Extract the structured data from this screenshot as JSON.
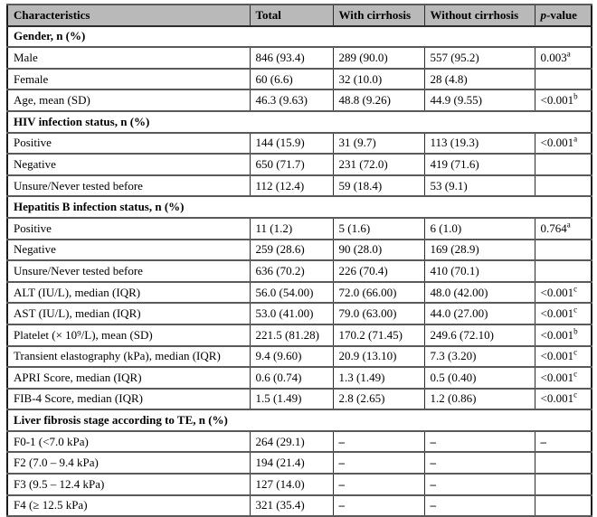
{
  "table": {
    "header": {
      "characteristics": "Characteristics",
      "total": "Total",
      "with_cirrhosis": "With cirrhosis",
      "without_cirrhosis": "Without cirrhosis",
      "p_value_italic": "p",
      "p_value_rest": "-value"
    },
    "rows": [
      {
        "type": "section",
        "label": "Gender, n (%)"
      },
      {
        "type": "data",
        "label": "Male",
        "total": "846 (93.4)",
        "with_cirrhosis": "289 (90.0)",
        "without_cirrhosis": "557 (95.2)",
        "p": "0.003",
        "p_sup": "a"
      },
      {
        "type": "data",
        "label": "Female",
        "total": "60 (6.6)",
        "with_cirrhosis": "32 (10.0)",
        "without_cirrhosis": "28 (4.8)",
        "p": "",
        "p_sup": ""
      },
      {
        "type": "data",
        "label": "Age, mean (SD)",
        "total": "46.3 (9.63)",
        "with_cirrhosis": "48.8 (9.26)",
        "without_cirrhosis": "44.9 (9.55)",
        "p": "<0.001",
        "p_sup": "b"
      },
      {
        "type": "section",
        "label": "HIV infection status, n (%)"
      },
      {
        "type": "data",
        "label": "Positive",
        "total": "144 (15.9)",
        "with_cirrhosis": "31 (9.7)",
        "without_cirrhosis": "113 (19.3)",
        "p": "<0.001",
        "p_sup": "a"
      },
      {
        "type": "data",
        "label": "Negative",
        "total": "650 (71.7)",
        "with_cirrhosis": "231 (72.0)",
        "without_cirrhosis": "419 (71.6)",
        "p": "",
        "p_sup": ""
      },
      {
        "type": "data",
        "label": "Unsure/Never tested before",
        "total": "112 (12.4)",
        "with_cirrhosis": "59 (18.4)",
        "without_cirrhosis": "53 (9.1)",
        "p": "",
        "p_sup": ""
      },
      {
        "type": "section",
        "label": "Hepatitis B infection status, n (%)"
      },
      {
        "type": "data",
        "label": "Positive",
        "total": "11 (1.2)",
        "with_cirrhosis": "5 (1.6)",
        "without_cirrhosis": "6 (1.0)",
        "p": "0.764",
        "p_sup": "a"
      },
      {
        "type": "data",
        "label": "Negative",
        "total": "259 (28.6)",
        "with_cirrhosis": "90 (28.0)",
        "without_cirrhosis": "169 (28.9)",
        "p": "",
        "p_sup": ""
      },
      {
        "type": "data",
        "label": "Unsure/Never tested before",
        "total": "636 (70.2)",
        "with_cirrhosis": "226 (70.4)",
        "without_cirrhosis": "410 (70.1)",
        "p": "",
        "p_sup": ""
      },
      {
        "type": "data",
        "label": "ALT (IU/L), median (IQR)",
        "total": "56.0 (54.00)",
        "with_cirrhosis": "72.0 (66.00)",
        "without_cirrhosis": "48.0 (42.00)",
        "p": "<0.001",
        "p_sup": "c"
      },
      {
        "type": "data",
        "label": "AST (IU/L), median (IQR)",
        "total": "53.0 (41.00)",
        "with_cirrhosis": "79.0 (63.00)",
        "without_cirrhosis": "44.0 (27.00)",
        "p": "<0.001",
        "p_sup": "c"
      },
      {
        "type": "data",
        "label": "Platelet (× 10⁹/L), mean (SD)",
        "total": "221.5 (81.28)",
        "with_cirrhosis": "170.2 (71.45)",
        "without_cirrhosis": "249.6 (72.10)",
        "p": "<0.001",
        "p_sup": "b"
      },
      {
        "type": "data",
        "label": "Transient elastography (kPa), median (IQR)",
        "total": "9.4 (9.60)",
        "with_cirrhosis": "20.9 (13.10)",
        "without_cirrhosis": "7.3 (3.20)",
        "p": "<0.001",
        "p_sup": "c"
      },
      {
        "type": "data",
        "label": "APRI Score, median (IQR)",
        "total": "0.6 (0.74)",
        "with_cirrhosis": "1.3 (1.49)",
        "without_cirrhosis": "0.5 (0.40)",
        "p": "<0.001",
        "p_sup": "c"
      },
      {
        "type": "data",
        "label": "FIB-4 Score, median (IQR)",
        "total": "1.5 (1.49)",
        "with_cirrhosis": "2.8 (2.65)",
        "without_cirrhosis": "1.2 (0.86)",
        "p": "<0.001",
        "p_sup": "c"
      },
      {
        "type": "section",
        "label": "Liver fibrosis stage according to TE, n (%)"
      },
      {
        "type": "data",
        "label": "F0-1 (<7.0 kPa)",
        "total": "264 (29.1)",
        "with_cirrhosis": "–",
        "without_cirrhosis": "–",
        "p": "–",
        "p_sup": ""
      },
      {
        "type": "data",
        "label": "F2 (7.0 – 9.4 kPa)",
        "total": "194 (21.4)",
        "with_cirrhosis": "–",
        "without_cirrhosis": "–",
        "p": "",
        "p_sup": ""
      },
      {
        "type": "data",
        "label": "F3 (9.5 – 12.4 kPa)",
        "total": "127 (14.0)",
        "with_cirrhosis": "–",
        "without_cirrhosis": "–",
        "p": "",
        "p_sup": ""
      },
      {
        "type": "data",
        "label": "F4 (≥ 12.5 kPa)",
        "total": "321 (35.4)",
        "with_cirrhosis": "–",
        "without_cirrhosis": "–",
        "p": "",
        "p_sup": ""
      }
    ]
  },
  "colors": {
    "header_bg": "#b9b9b9",
    "outer_border": "#1a1a1a",
    "vertical_rule": "#2c2c2c",
    "horizontal_rule": "#5a5a5a",
    "text": "#000000"
  }
}
